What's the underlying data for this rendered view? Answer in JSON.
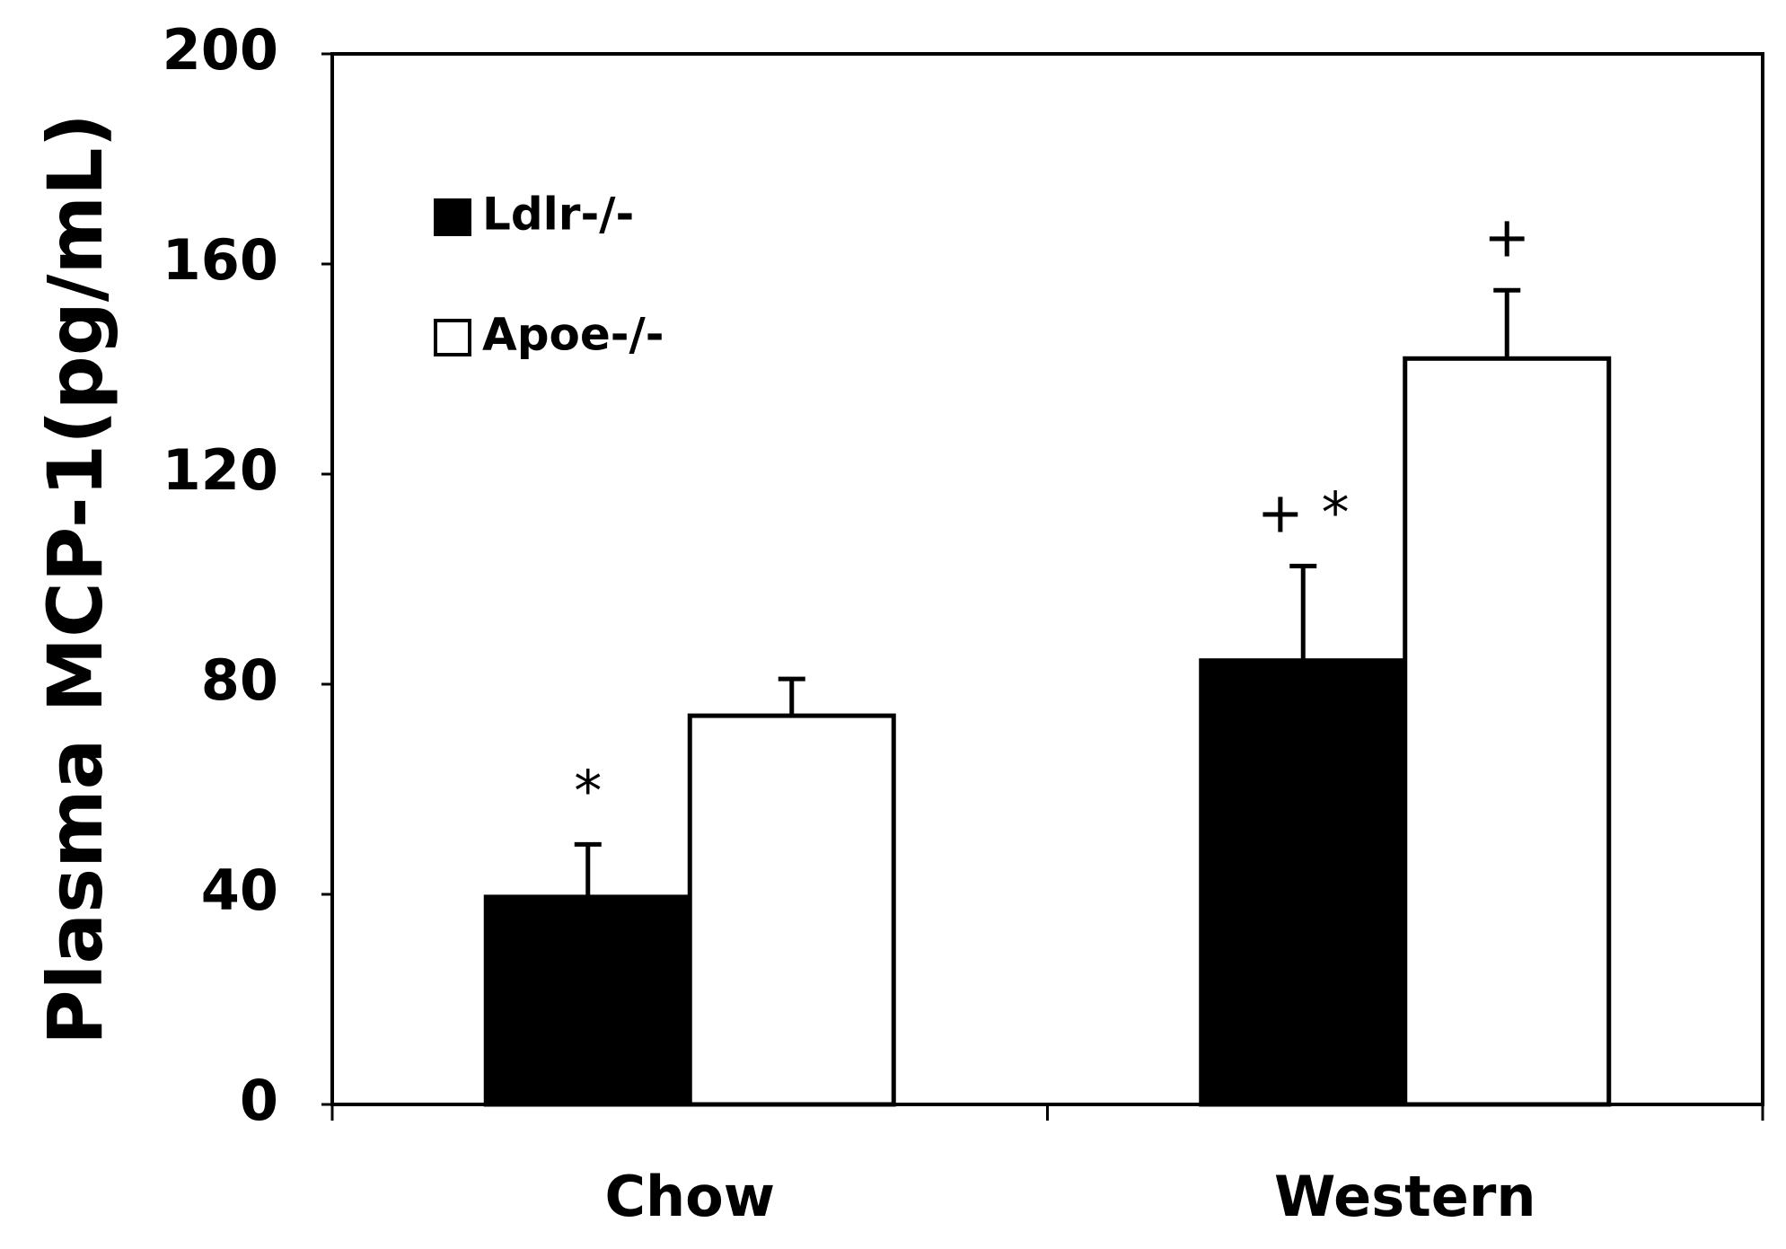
{
  "chart_data": {
    "type": "bar",
    "y_label": "Plasma MCP-1(pg/mL)",
    "categories": [
      "Chow",
      "Western"
    ],
    "series": [
      {
        "name": "Ldlr-/-",
        "color": "#000000",
        "values": [
          39.5,
          84.5
        ],
        "errors": [
          10,
          18
        ],
        "value_annotations": [
          "*",
          "+ *"
        ]
      },
      {
        "name": "Apoe-/-",
        "color": "#ffffff",
        "values": [
          74,
          142
        ],
        "errors": [
          7,
          13
        ],
        "value_annotations": [
          null,
          "+"
        ]
      }
    ],
    "ylim": [
      0,
      200
    ],
    "yticks": [
      0,
      40,
      80,
      120,
      160,
      200
    ],
    "legend": "upper left",
    "grid": false
  }
}
